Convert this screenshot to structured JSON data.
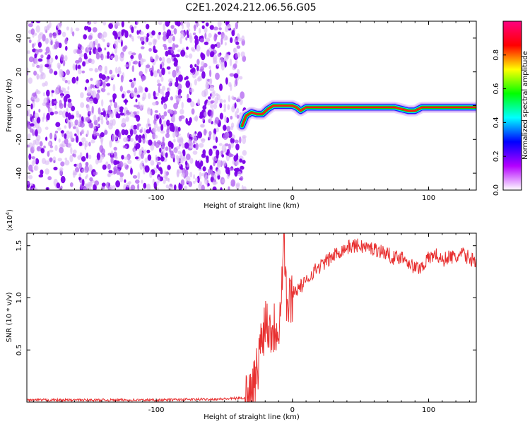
{
  "title": "C2E1.2024.212.06.56.G05",
  "chart_data": [
    {
      "type": "heatmap",
      "xlabel": "Height of straight line (km)",
      "ylabel": "Frequency (Hz)",
      "xlim": [
        -195,
        135
      ],
      "ylim": [
        -50,
        50
      ],
      "x_ticks": [
        -100,
        0,
        100
      ],
      "x_tick_labels": [
        "-100",
        "0",
        "100"
      ],
      "y_ticks": [
        -40,
        -20,
        0,
        20,
        40
      ],
      "y_tick_labels": [
        "-40",
        "-20",
        "0",
        "20",
        "40"
      ],
      "noise_region_x": [
        -195,
        -35
      ],
      "ridge": {
        "x": [
          -37,
          -34,
          -30,
          -26,
          -22,
          -18,
          -14,
          -10,
          -5,
          0,
          3,
          6,
          10,
          20,
          35,
          50,
          65,
          75,
          80,
          85,
          90,
          95,
          100,
          110,
          120,
          135
        ],
        "y": [
          -12,
          -6,
          -4,
          -5,
          -5,
          -2,
          0,
          0,
          0,
          0,
          -1,
          -3,
          -1,
          -1,
          -1,
          -1,
          -1,
          -1,
          -2,
          -3,
          -3,
          -1,
          -1,
          -1,
          -1,
          -1
        ]
      },
      "colorbar": {
        "label": "Normalized spectral amplitude",
        "range": [
          0,
          1
        ],
        "ticks": [
          0.0,
          0.2,
          0.4,
          0.6,
          0.8
        ],
        "tick_labels": [
          "0.0",
          "0.2",
          "0.4",
          "0.6",
          "0.8"
        ],
        "colors": [
          "#ffffff",
          "#b400ff",
          "#0000ff",
          "#00ffff",
          "#00ff00",
          "#ffff00",
          "#ff0000",
          "#ff0080"
        ]
      }
    },
    {
      "type": "line",
      "xlabel": "Height of straight line (km)",
      "ylabel": "SNR (10 * v/v)",
      "y_multiplier_label": "(x10",
      "y_multiplier_exp": "4",
      "y_multiplier_close": ")",
      "xlim": [
        -195,
        135
      ],
      "ylim": [
        0,
        1.62
      ],
      "x_ticks": [
        -100,
        0,
        100
      ],
      "x_tick_labels": [
        "-100",
        "0",
        "100"
      ],
      "y_ticks": [
        0.5,
        1.0,
        1.5
      ],
      "y_tick_labels": [
        "0.5",
        "1.0",
        "1.5"
      ],
      "color": "#e83030",
      "series": [
        {
          "x": [
            -195,
            -150,
            -100,
            -50,
            -35,
            -30,
            -27,
            -24,
            -20,
            -15,
            -10,
            -6,
            -4,
            -2,
            0,
            5,
            10,
            15,
            20,
            25,
            30,
            35,
            40,
            45,
            50,
            55,
            60,
            65,
            70,
            75,
            80,
            85,
            90,
            95,
            100,
            105,
            110,
            115,
            120,
            125,
            130,
            135
          ],
          "y": [
            0.02,
            0.02,
            0.02,
            0.03,
            0.04,
            0.08,
            0.2,
            0.5,
            0.8,
            0.7,
            0.75,
            1.55,
            0.9,
            0.95,
            1.05,
            1.1,
            1.15,
            1.25,
            1.3,
            1.35,
            1.4,
            1.45,
            1.48,
            1.5,
            1.5,
            1.48,
            1.47,
            1.45,
            1.42,
            1.38,
            1.4,
            1.35,
            1.28,
            1.3,
            1.38,
            1.42,
            1.35,
            1.4,
            1.38,
            1.42,
            1.38,
            1.35
          ]
        }
      ]
    }
  ]
}
